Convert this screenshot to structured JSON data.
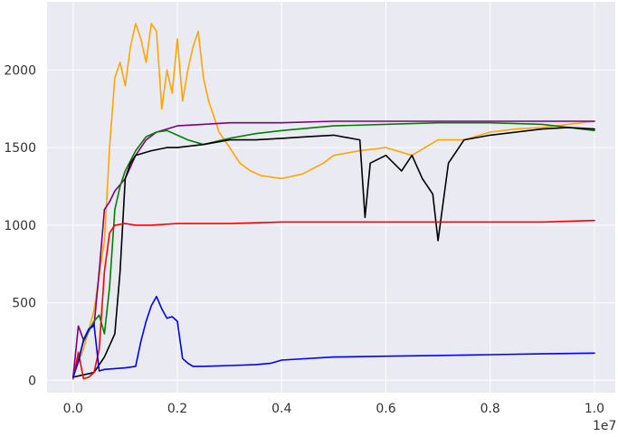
{
  "chart_data": {
    "type": "line",
    "title": "",
    "xlabel": "",
    "ylabel": "",
    "x_offset_label": "1e7",
    "xlim": [
      -0.05,
      1.04
    ],
    "ylim": [
      -80,
      2440
    ],
    "x_ticks": [
      0.0,
      0.2,
      0.4,
      0.6,
      0.8,
      1.0
    ],
    "x_tick_labels": [
      "0.0",
      "0.2",
      "0.4",
      "0.6",
      "0.8",
      "1.0"
    ],
    "y_ticks": [
      0,
      500,
      1000,
      1500,
      2000
    ],
    "y_tick_labels": [
      "0",
      "500",
      "1000",
      "1500",
      "2000"
    ],
    "grid": true,
    "series": [
      {
        "name": "orange",
        "color": "#FFA500",
        "x": [
          0.0,
          0.02,
          0.04,
          0.06,
          0.07,
          0.08,
          0.09,
          0.1,
          0.11,
          0.12,
          0.13,
          0.14,
          0.15,
          0.16,
          0.17,
          0.18,
          0.19,
          0.2,
          0.21,
          0.22,
          0.23,
          0.24,
          0.25,
          0.26,
          0.27,
          0.28,
          0.3,
          0.32,
          0.34,
          0.36,
          0.4,
          0.44,
          0.48,
          0.5,
          0.55,
          0.6,
          0.65,
          0.7,
          0.75,
          0.8,
          0.85,
          0.9,
          0.95,
          1.0
        ],
        "y": [
          30,
          200,
          450,
          900,
          1500,
          1950,
          2050,
          1900,
          2150,
          2300,
          2200,
          2050,
          2300,
          2250,
          1750,
          2000,
          1850,
          2200,
          1800,
          2000,
          2150,
          2250,
          1950,
          1800,
          1700,
          1600,
          1500,
          1400,
          1350,
          1320,
          1300,
          1330,
          1400,
          1450,
          1480,
          1500,
          1450,
          1550,
          1550,
          1600,
          1620,
          1630,
          1650,
          1670
        ]
      },
      {
        "name": "purple",
        "color": "#800080",
        "x": [
          0.0,
          0.01,
          0.02,
          0.03,
          0.04,
          0.05,
          0.06,
          0.07,
          0.08,
          0.1,
          0.12,
          0.14,
          0.16,
          0.18,
          0.2,
          0.25,
          0.3,
          0.4,
          0.5,
          0.6,
          0.7,
          0.8,
          0.9,
          1.0
        ],
        "y": [
          20,
          350,
          260,
          330,
          350,
          700,
          1100,
          1150,
          1220,
          1300,
          1450,
          1550,
          1600,
          1620,
          1640,
          1650,
          1660,
          1660,
          1670,
          1670,
          1670,
          1670,
          1670,
          1670
        ]
      },
      {
        "name": "green",
        "color": "#008000",
        "x": [
          0.0,
          0.02,
          0.04,
          0.05,
          0.06,
          0.07,
          0.08,
          0.09,
          0.1,
          0.12,
          0.14,
          0.16,
          0.18,
          0.2,
          0.22,
          0.25,
          0.3,
          0.35,
          0.4,
          0.5,
          0.6,
          0.7,
          0.8,
          0.9,
          1.0
        ],
        "y": [
          20,
          250,
          380,
          420,
          300,
          600,
          1100,
          1250,
          1350,
          1480,
          1570,
          1600,
          1610,
          1580,
          1550,
          1520,
          1560,
          1590,
          1610,
          1640,
          1650,
          1660,
          1660,
          1650,
          1610
        ]
      },
      {
        "name": "black",
        "color": "#000000",
        "x": [
          0.0,
          0.04,
          0.06,
          0.08,
          0.09,
          0.1,
          0.11,
          0.12,
          0.13,
          0.15,
          0.18,
          0.2,
          0.25,
          0.3,
          0.35,
          0.4,
          0.45,
          0.5,
          0.55,
          0.56,
          0.57,
          0.6,
          0.63,
          0.65,
          0.67,
          0.69,
          0.7,
          0.72,
          0.75,
          0.8,
          0.85,
          0.9,
          0.95,
          1.0
        ],
        "y": [
          20,
          50,
          150,
          300,
          700,
          1300,
          1400,
          1450,
          1460,
          1480,
          1500,
          1500,
          1520,
          1550,
          1550,
          1560,
          1570,
          1580,
          1550,
          1050,
          1400,
          1450,
          1350,
          1450,
          1300,
          1200,
          900,
          1400,
          1550,
          1580,
          1600,
          1620,
          1630,
          1620
        ]
      },
      {
        "name": "red",
        "color": "#FF0000",
        "x": [
          0.0,
          0.01,
          0.02,
          0.03,
          0.04,
          0.05,
          0.06,
          0.07,
          0.08,
          0.1,
          0.12,
          0.15,
          0.2,
          0.3,
          0.4,
          0.5,
          0.6,
          0.7,
          0.8,
          0.9,
          1.0
        ],
        "y": [
          10,
          180,
          10,
          20,
          50,
          200,
          700,
          950,
          1000,
          1010,
          1000,
          1000,
          1010,
          1010,
          1020,
          1020,
          1020,
          1020,
          1020,
          1020,
          1030
        ]
      },
      {
        "name": "blue",
        "color": "#0000FF",
        "x": [
          0.0,
          0.01,
          0.02,
          0.03,
          0.04,
          0.05,
          0.06,
          0.08,
          0.1,
          0.12,
          0.13,
          0.14,
          0.15,
          0.16,
          0.17,
          0.18,
          0.19,
          0.2,
          0.21,
          0.22,
          0.23,
          0.25,
          0.3,
          0.35,
          0.38,
          0.4,
          0.5,
          0.6,
          0.7,
          0.8,
          0.9,
          1.0
        ],
        "y": [
          20,
          120,
          260,
          330,
          360,
          60,
          70,
          75,
          80,
          90,
          250,
          380,
          480,
          540,
          460,
          400,
          410,
          380,
          140,
          110,
          90,
          90,
          95,
          100,
          110,
          130,
          150,
          155,
          160,
          165,
          170,
          175
        ]
      }
    ]
  }
}
